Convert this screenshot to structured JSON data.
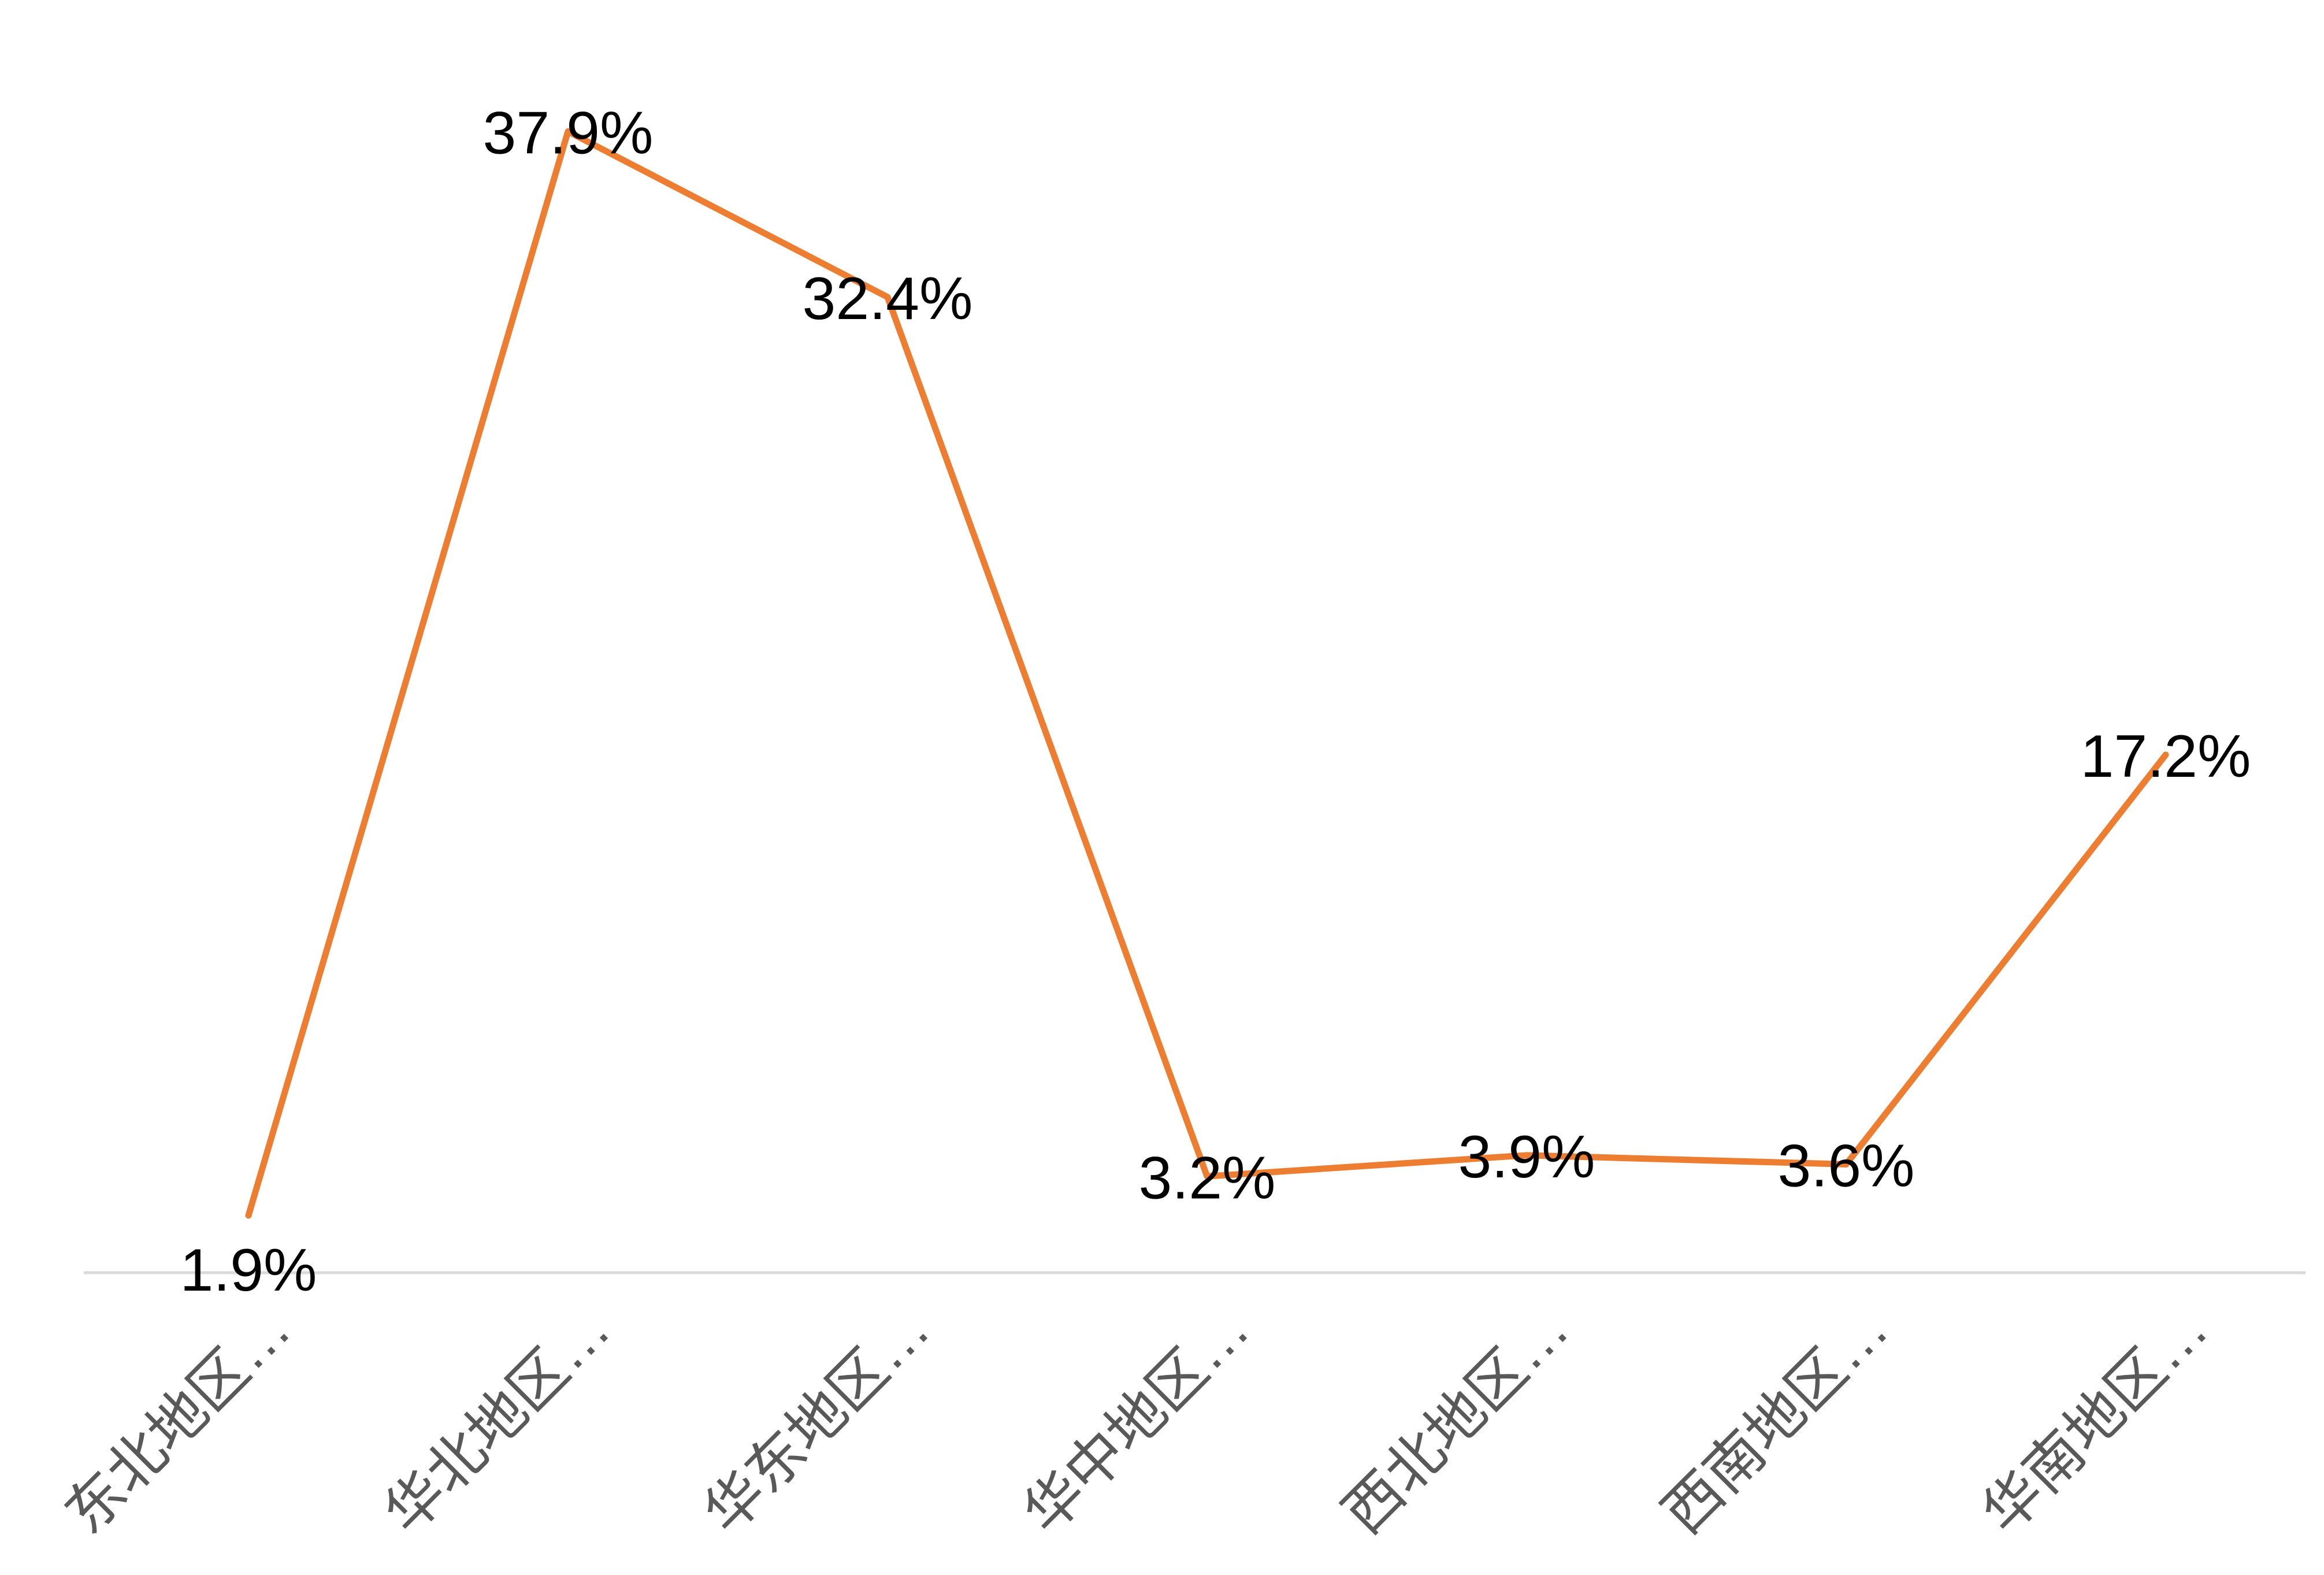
{
  "chart_data": {
    "type": "line",
    "title": "",
    "xlabel": "",
    "ylabel": "",
    "categories": [
      "东北地区…",
      "华北地区…",
      "华东地区…",
      "华中地区…",
      "西北地区…",
      "西南地区…",
      "华南地区…"
    ],
    "series": [
      {
        "values": [
          1.9,
          37.9,
          32.4,
          3.2,
          3.9,
          3.6,
          17.2
        ],
        "labels": [
          "1.9%",
          "37.9%",
          "32.4%",
          "3.2%",
          "3.9%",
          "3.6%",
          "17.2%"
        ],
        "color": "#ED7D31"
      }
    ],
    "ylim": [
      0,
      40
    ],
    "grid": false,
    "legend": "none",
    "axis_color": "#D9D9D9",
    "category_label_color": "#595959"
  }
}
